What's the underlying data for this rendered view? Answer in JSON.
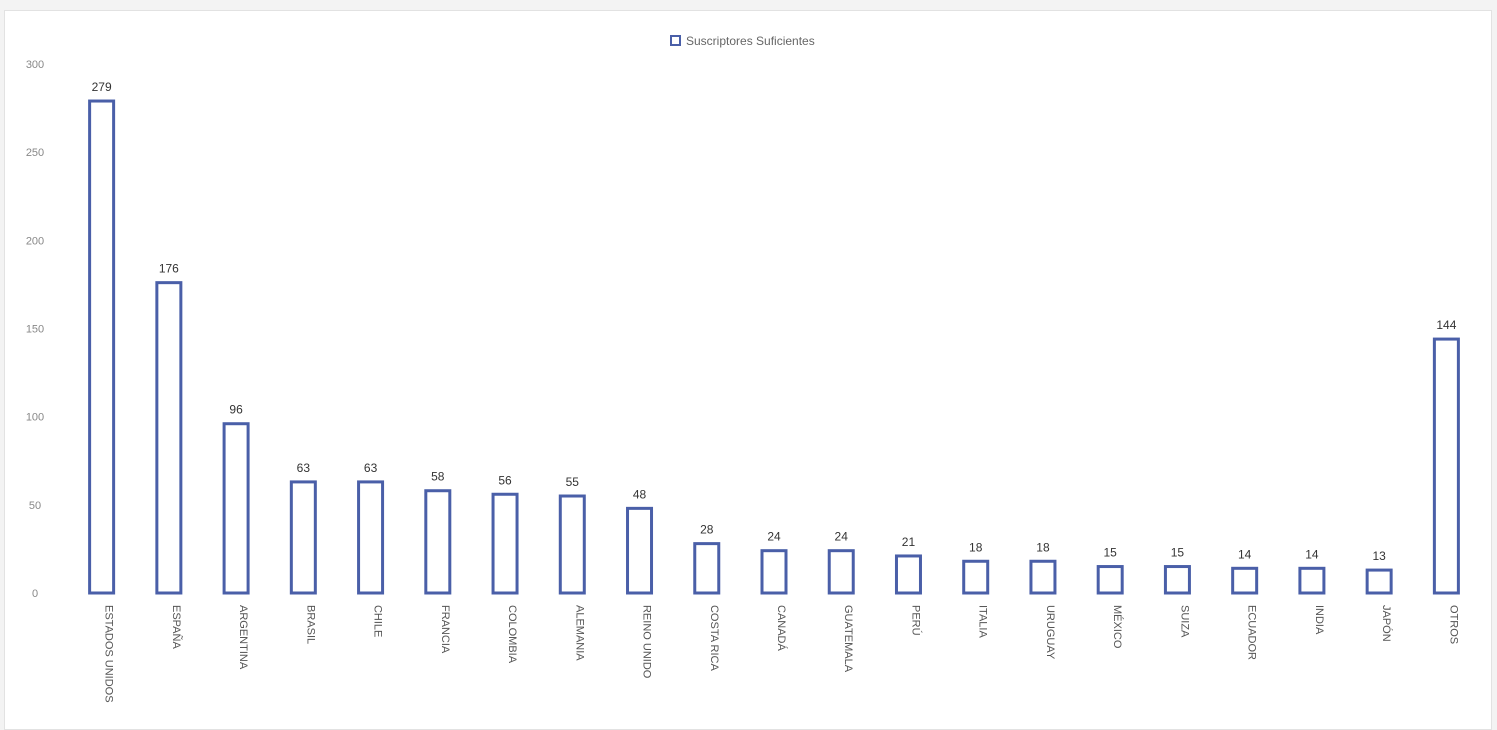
{
  "chart_data": {
    "type": "bar",
    "legend": {
      "label": "Suscriptores Suficientes",
      "position": "top-center"
    },
    "categories": [
      "ESTADOS UNIDOS",
      "ESPAÑA",
      "ARGENTINA",
      "BRASIL",
      "CHILE",
      "FRANCIA",
      "COLOMBIA",
      "ALEMANIA",
      "REINO UNIDO",
      "COSTA RICA",
      "CANADÁ",
      "GUATEMALA",
      "PERÚ",
      "ITALIA",
      "URUGUAY",
      "MÉXICO",
      "SUIZA",
      "ECUADOR",
      "INDIA",
      "JAPÓN",
      "OTROS"
    ],
    "values": [
      279,
      176,
      96,
      63,
      63,
      58,
      56,
      55,
      48,
      28,
      24,
      24,
      21,
      18,
      18,
      15,
      15,
      14,
      14,
      13,
      144
    ],
    "y_ticks": [
      "0",
      "50",
      "100",
      "150",
      "200",
      "250",
      "300"
    ],
    "ylim": [
      0,
      300
    ],
    "grid": false,
    "colors": {
      "bar_border": "#4a5fa8",
      "bar_fill": "#ffffff"
    }
  }
}
